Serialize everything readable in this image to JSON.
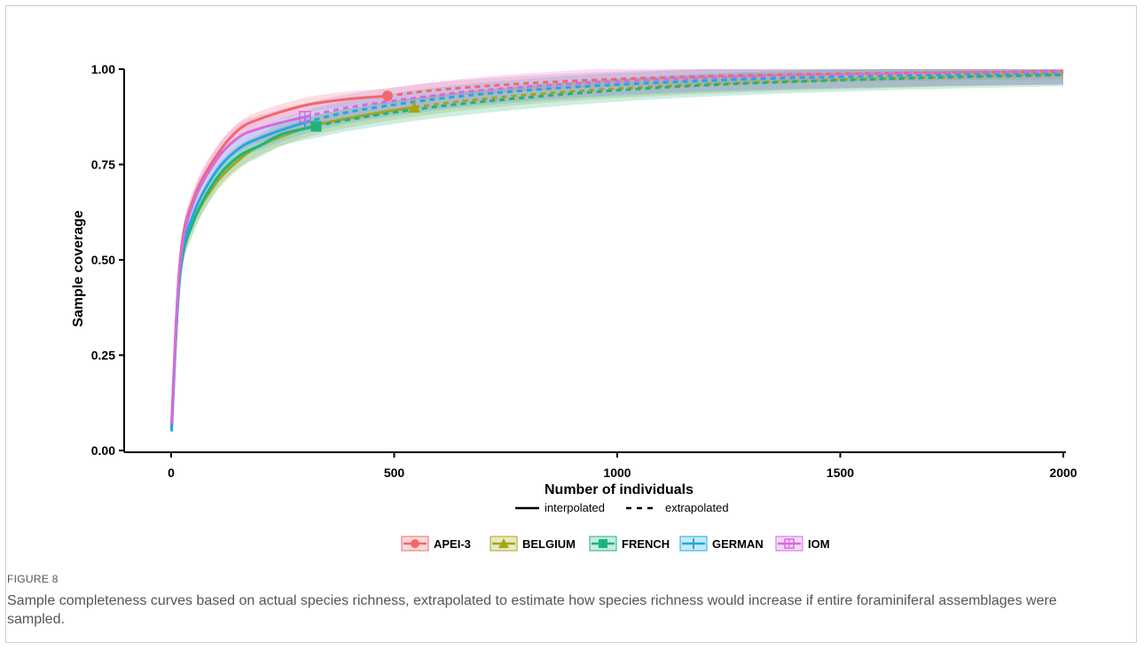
{
  "figure": {
    "label": "FIGURE 8",
    "caption": "Sample completeness curves based on actual species richness, extrapolated to estimate how species richness would increase if entire foraminiferal assemblages were sampled."
  },
  "chart_data": {
    "type": "line",
    "xlabel": "Number of individuals",
    "ylabel": "Sample coverage",
    "xlim": [
      -100,
      2000
    ],
    "ylim": [
      0,
      1
    ],
    "x_ticks": [
      0,
      500,
      1000,
      1500,
      2000
    ],
    "x_tick_labels": [
      "0",
      "500",
      "1000",
      "1500",
      "2000"
    ],
    "y_ticks": [
      0,
      0.25,
      0.5,
      0.75,
      1.0
    ],
    "y_tick_labels": [
      "0.00",
      "0.25",
      "0.50",
      "0.75",
      "1.00"
    ],
    "line_types": {
      "interpolated": "interpolated",
      "extrapolated": "extrapolated"
    },
    "legend_position": "bottom",
    "series": [
      {
        "name": "APEI-3",
        "color": "#f0686c",
        "marker": "circle",
        "observed": [
          485,
          0.93
        ],
        "band": 0.02,
        "points": [
          [
            1,
            0.07
          ],
          [
            20,
            0.5
          ],
          [
            50,
            0.66
          ],
          [
            100,
            0.77
          ],
          [
            150,
            0.84
          ],
          [
            200,
            0.87
          ],
          [
            300,
            0.905
          ],
          [
            400,
            0.922
          ],
          [
            485,
            0.93
          ],
          [
            600,
            0.946
          ],
          [
            800,
            0.963
          ],
          [
            1000,
            0.974
          ],
          [
            1200,
            0.981
          ],
          [
            1500,
            0.988
          ],
          [
            2000,
            0.994
          ]
        ]
      },
      {
        "name": "BELGIUM",
        "color": "#a6a614",
        "marker": "triangle",
        "observed": [
          545,
          0.9
        ],
        "band": 0.025,
        "points": [
          [
            1,
            0.07
          ],
          [
            20,
            0.46
          ],
          [
            50,
            0.6
          ],
          [
            100,
            0.7
          ],
          [
            150,
            0.76
          ],
          [
            200,
            0.8
          ],
          [
            300,
            0.845
          ],
          [
            400,
            0.872
          ],
          [
            545,
            0.9
          ],
          [
            700,
            0.922
          ],
          [
            900,
            0.942
          ],
          [
            1100,
            0.955
          ],
          [
            1300,
            0.965
          ],
          [
            1500,
            0.972
          ],
          [
            1750,
            0.98
          ],
          [
            2000,
            0.986
          ]
        ]
      },
      {
        "name": "FRENCH",
        "color": "#1fb37c",
        "marker": "square",
        "observed": [
          325,
          0.85
        ],
        "band": 0.03,
        "points": [
          [
            1,
            0.06
          ],
          [
            20,
            0.46
          ],
          [
            50,
            0.6
          ],
          [
            100,
            0.71
          ],
          [
            150,
            0.77
          ],
          [
            200,
            0.8
          ],
          [
            250,
            0.83
          ],
          [
            325,
            0.85
          ],
          [
            400,
            0.868
          ],
          [
            550,
            0.895
          ],
          [
            700,
            0.915
          ],
          [
            900,
            0.936
          ],
          [
            1100,
            0.952
          ],
          [
            1300,
            0.963
          ],
          [
            1500,
            0.971
          ],
          [
            1750,
            0.979
          ],
          [
            2000,
            0.985
          ]
        ]
      },
      {
        "name": "GERMAN",
        "color": "#23a7e0",
        "marker": "cross",
        "observed": [
          300,
          0.86
        ],
        "band": 0.03,
        "points": [
          [
            1,
            0.05
          ],
          [
            20,
            0.47
          ],
          [
            50,
            0.62
          ],
          [
            100,
            0.73
          ],
          [
            150,
            0.79
          ],
          [
            200,
            0.82
          ],
          [
            300,
            0.86
          ],
          [
            400,
            0.888
          ],
          [
            550,
            0.915
          ],
          [
            700,
            0.935
          ],
          [
            900,
            0.953
          ],
          [
            1100,
            0.965
          ],
          [
            1300,
            0.974
          ],
          [
            1500,
            0.98
          ],
          [
            1750,
            0.986
          ],
          [
            2000,
            0.99
          ]
        ]
      },
      {
        "name": "IOM",
        "color": "#d56be0",
        "marker": "box-cross",
        "observed": [
          300,
          0.875
        ],
        "band": 0.035,
        "points": [
          [
            1,
            0.07
          ],
          [
            20,
            0.49
          ],
          [
            50,
            0.65
          ],
          [
            100,
            0.76
          ],
          [
            150,
            0.82
          ],
          [
            200,
            0.845
          ],
          [
            300,
            0.875
          ],
          [
            400,
            0.9
          ],
          [
            550,
            0.925
          ],
          [
            700,
            0.945
          ],
          [
            900,
            0.962
          ],
          [
            1100,
            0.973
          ],
          [
            1300,
            0.981
          ],
          [
            1500,
            0.986
          ],
          [
            1750,
            0.991
          ],
          [
            2000,
            0.994
          ]
        ]
      }
    ]
  }
}
